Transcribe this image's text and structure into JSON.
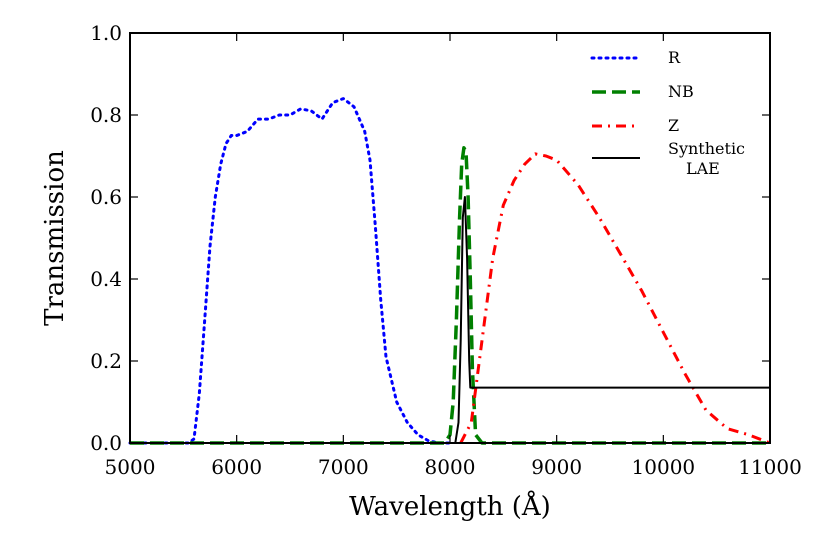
{
  "chart_data": {
    "type": "line",
    "title": "",
    "xlabel": "Wavelength (Å)",
    "ylabel": "Transmission",
    "xlim": [
      5000,
      11000
    ],
    "ylim": [
      0,
      1.0
    ],
    "x_ticks": [
      5000,
      6000,
      7000,
      8000,
      9000,
      10000,
      11000
    ],
    "x_tick_labels": [
      "5000",
      "6000",
      "7000",
      "8000",
      "9000",
      "10000",
      "11000"
    ],
    "y_ticks": [
      0.0,
      0.2,
      0.4,
      0.6,
      0.8,
      1.0
    ],
    "y_tick_labels": [
      "0.0",
      "0.2",
      "0.4",
      "0.6",
      "0.8",
      "1.0"
    ],
    "grid": false,
    "legend_position": "top-right",
    "series": [
      {
        "name": "R",
        "color": "#0000ff",
        "style": "dotted",
        "x": [
          5000,
          5550,
          5600,
          5650,
          5700,
          5750,
          5800,
          5850,
          5900,
          5950,
          6000,
          6100,
          6200,
          6300,
          6400,
          6500,
          6600,
          6700,
          6800,
          6900,
          7000,
          7050,
          7100,
          7200,
          7250,
          7300,
          7350,
          7400,
          7500,
          7600,
          7700,
          7800,
          7900,
          8000
        ],
        "y": [
          0.0,
          0.0,
          0.01,
          0.12,
          0.3,
          0.48,
          0.6,
          0.68,
          0.73,
          0.75,
          0.75,
          0.76,
          0.79,
          0.79,
          0.8,
          0.8,
          0.815,
          0.81,
          0.79,
          0.83,
          0.84,
          0.83,
          0.82,
          0.76,
          0.69,
          0.53,
          0.35,
          0.21,
          0.1,
          0.05,
          0.02,
          0.005,
          0.0,
          0.0
        ]
      },
      {
        "name": "NB",
        "color": "#008000",
        "style": "dashed",
        "x": [
          5000,
          7950,
          8000,
          8030,
          8060,
          8090,
          8110,
          8130,
          8150,
          8170,
          8190,
          8210,
          8240,
          8300,
          11000
        ],
        "y": [
          0.0,
          0.0,
          0.02,
          0.1,
          0.3,
          0.55,
          0.68,
          0.72,
          0.71,
          0.6,
          0.4,
          0.18,
          0.02,
          0.0,
          0.0
        ]
      },
      {
        "name": "Z",
        "color": "#ff0000",
        "style": "dashdot",
        "x": [
          8100,
          8200,
          8300,
          8400,
          8500,
          8600,
          8700,
          8800,
          8900,
          9000,
          9200,
          9400,
          9600,
          9800,
          10000,
          10200,
          10400,
          10600,
          10800,
          11000
        ],
        "y": [
          0.0,
          0.05,
          0.25,
          0.45,
          0.58,
          0.64,
          0.68,
          0.705,
          0.7,
          0.69,
          0.63,
          0.55,
          0.46,
          0.37,
          0.27,
          0.17,
          0.08,
          0.035,
          0.02,
          0.0
        ]
      },
      {
        "name": "Synthetic\nLAE",
        "color": "#000000",
        "style": "solid",
        "x": [
          5000,
          8050,
          8080,
          8100,
          8120,
          8140,
          8160,
          8180,
          8190,
          8200,
          11000
        ],
        "y": [
          0.0,
          0.0,
          0.05,
          0.25,
          0.55,
          0.6,
          0.45,
          0.2,
          0.135,
          0.135,
          0.135
        ]
      }
    ]
  }
}
